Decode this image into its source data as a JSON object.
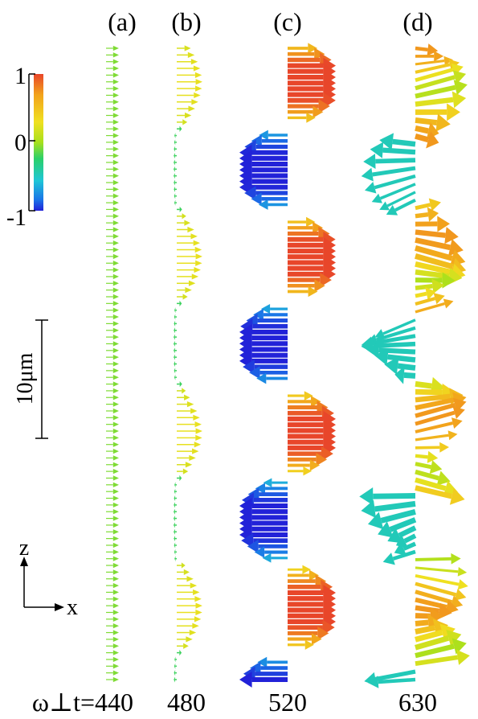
{
  "panels": [
    {
      "label": "(a)",
      "time": "440",
      "amplitude": 0.0
    },
    {
      "label": "(b)",
      "time": "480",
      "amplitude": 0.4
    },
    {
      "label": "(c)",
      "time": "520",
      "amplitude": 1.0
    },
    {
      "label": "(d)",
      "time": "630",
      "amplitude": 1.0
    }
  ],
  "time_prefix": "ω⊥t=",
  "colorbar": {
    "ticks": [
      "1",
      "0",
      "-1"
    ],
    "colors": [
      "#e8462a",
      "#f2a21c",
      "#f0e020",
      "#a8e01c",
      "#2ad06a",
      "#1fc6d6",
      "#1a74e8",
      "#2222d8"
    ]
  },
  "scale_bar": {
    "label": "10μm"
  },
  "axes": {
    "vertical": "z",
    "horizontal": "x"
  }
}
